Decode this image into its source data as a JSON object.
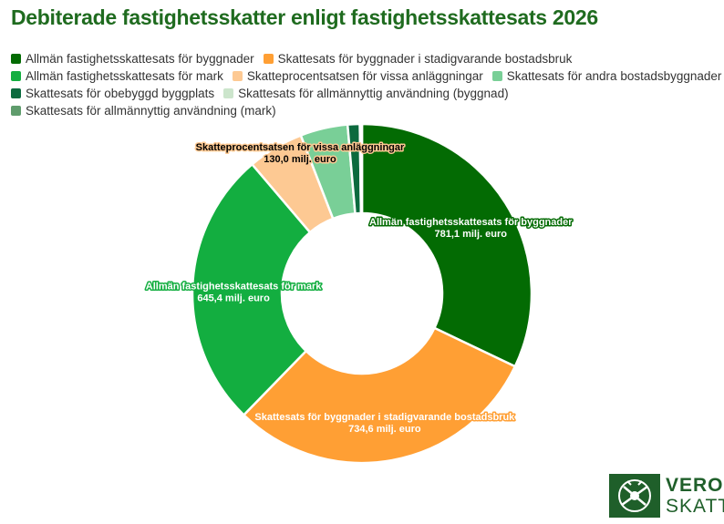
{
  "title": "Debiterade fastighetsskatter enligt fastighetsskattesats 2026",
  "chart_data": {
    "type": "pie",
    "donut": true,
    "title": "Debiterade fastighetsskatter enligt fastighetsskattesats 2026",
    "unit": "milj. euro",
    "legend_position": "top",
    "series": [
      {
        "name": "Allmän fastighetsskattesats för byggnader",
        "value": 781.1,
        "color": "#036b03",
        "label_text": "781,1 milj. euro"
      },
      {
        "name": "Skattesats för byggnader i stadigvarande bostadsbruk",
        "value": 734.6,
        "color": "#ff9f34",
        "label_text": "734,6 milj. euro"
      },
      {
        "name": "Allmän fastighetsskattesats för mark",
        "value": 645.4,
        "color": "#13ae40",
        "label_text": "645,4 milj. euro"
      },
      {
        "name": "Skatteprocentsatsen för vissa anläggningar",
        "value": 130.0,
        "color": "#fdc993",
        "label_text": "130,0 milj. euro"
      },
      {
        "name": "Skattesats för andra bostadsbyggnader",
        "value": 110.0,
        "color": "#79cf97",
        "label_text": ""
      },
      {
        "name": "Skattesats för obebyggd byggplats",
        "value": 28.0,
        "color": "#0b6a3e",
        "label_text": ""
      },
      {
        "name": "Skattesats för allmännyttig användning (byggnad)",
        "value": 3.0,
        "color": "#cce5cc",
        "label_text": ""
      },
      {
        "name": "Skattesats för allmännyttig användning (mark)",
        "value": 2.0,
        "color": "#5f9c6c",
        "label_text": ""
      }
    ]
  },
  "logo": {
    "line1": "VERO",
    "line2": "SKATT"
  }
}
